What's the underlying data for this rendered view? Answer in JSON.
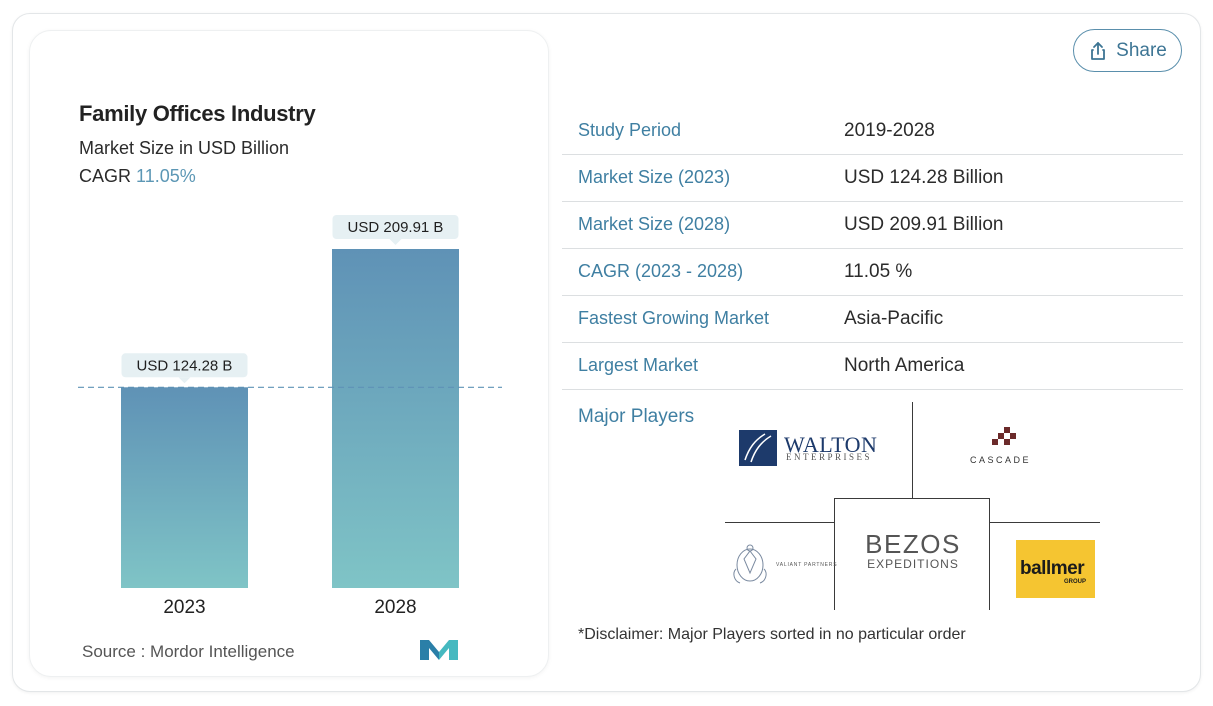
{
  "header": {
    "share_label": "Share"
  },
  "chart_panel": {
    "title": "Family Offices Industry",
    "subtitle": "Market Size in USD Billion",
    "cagr_label": "CAGR",
    "cagr_value": "11.05%",
    "source": "Source :  Mordor Intelligence"
  },
  "chart_data": {
    "type": "bar",
    "title": "Family Offices Industry",
    "subtitle": "Market Size in USD Billion",
    "categories": [
      "2023",
      "2028"
    ],
    "values": [
      124.28,
      209.91
    ],
    "data_labels": [
      "USD 124.28 B",
      "USD 209.91 B"
    ],
    "xlabel": "",
    "ylabel": "",
    "ylim": [
      0,
      209.91
    ],
    "grid": false,
    "reference_line_at": 124.28,
    "bar_gradient": [
      "#5f92b6",
      "#7fc4c6"
    ],
    "label_bg": "#e6f0f3"
  },
  "info_table": [
    {
      "label": "Study Period",
      "value": "2019-2028"
    },
    {
      "label": "Market Size (2023)",
      "value": "USD 124.28 Billion"
    },
    {
      "label": "Market Size (2028)",
      "value": "USD 209.91 Billion"
    },
    {
      "label": "CAGR (2023 - 2028)",
      "value": "11.05 %"
    },
    {
      "label": "Fastest Growing Market",
      "value": "Asia-Pacific"
    },
    {
      "label": "Largest Market",
      "value": "North America"
    }
  ],
  "players": {
    "label": "Major Players",
    "logos": {
      "walton": {
        "name": "WALTON",
        "sub": "ENTERPRISES"
      },
      "cascade": {
        "name": "CASCADE"
      },
      "bezos": {
        "name": "BEZOS",
        "sub": "EXPEDITIONS"
      },
      "ballmer": {
        "name": "ballmer",
        "sub": "GROUP"
      },
      "valiant": {
        "name": "VALIANT PARTNERS"
      }
    },
    "disclaimer": "*Disclaimer: Major Players sorted in no particular order"
  },
  "colors": {
    "accent": "#3f7fa2",
    "cagr_value": "#5c97b5",
    "ballmer_yellow": "#f5c531",
    "walton_blue": "#1d3a6b"
  }
}
